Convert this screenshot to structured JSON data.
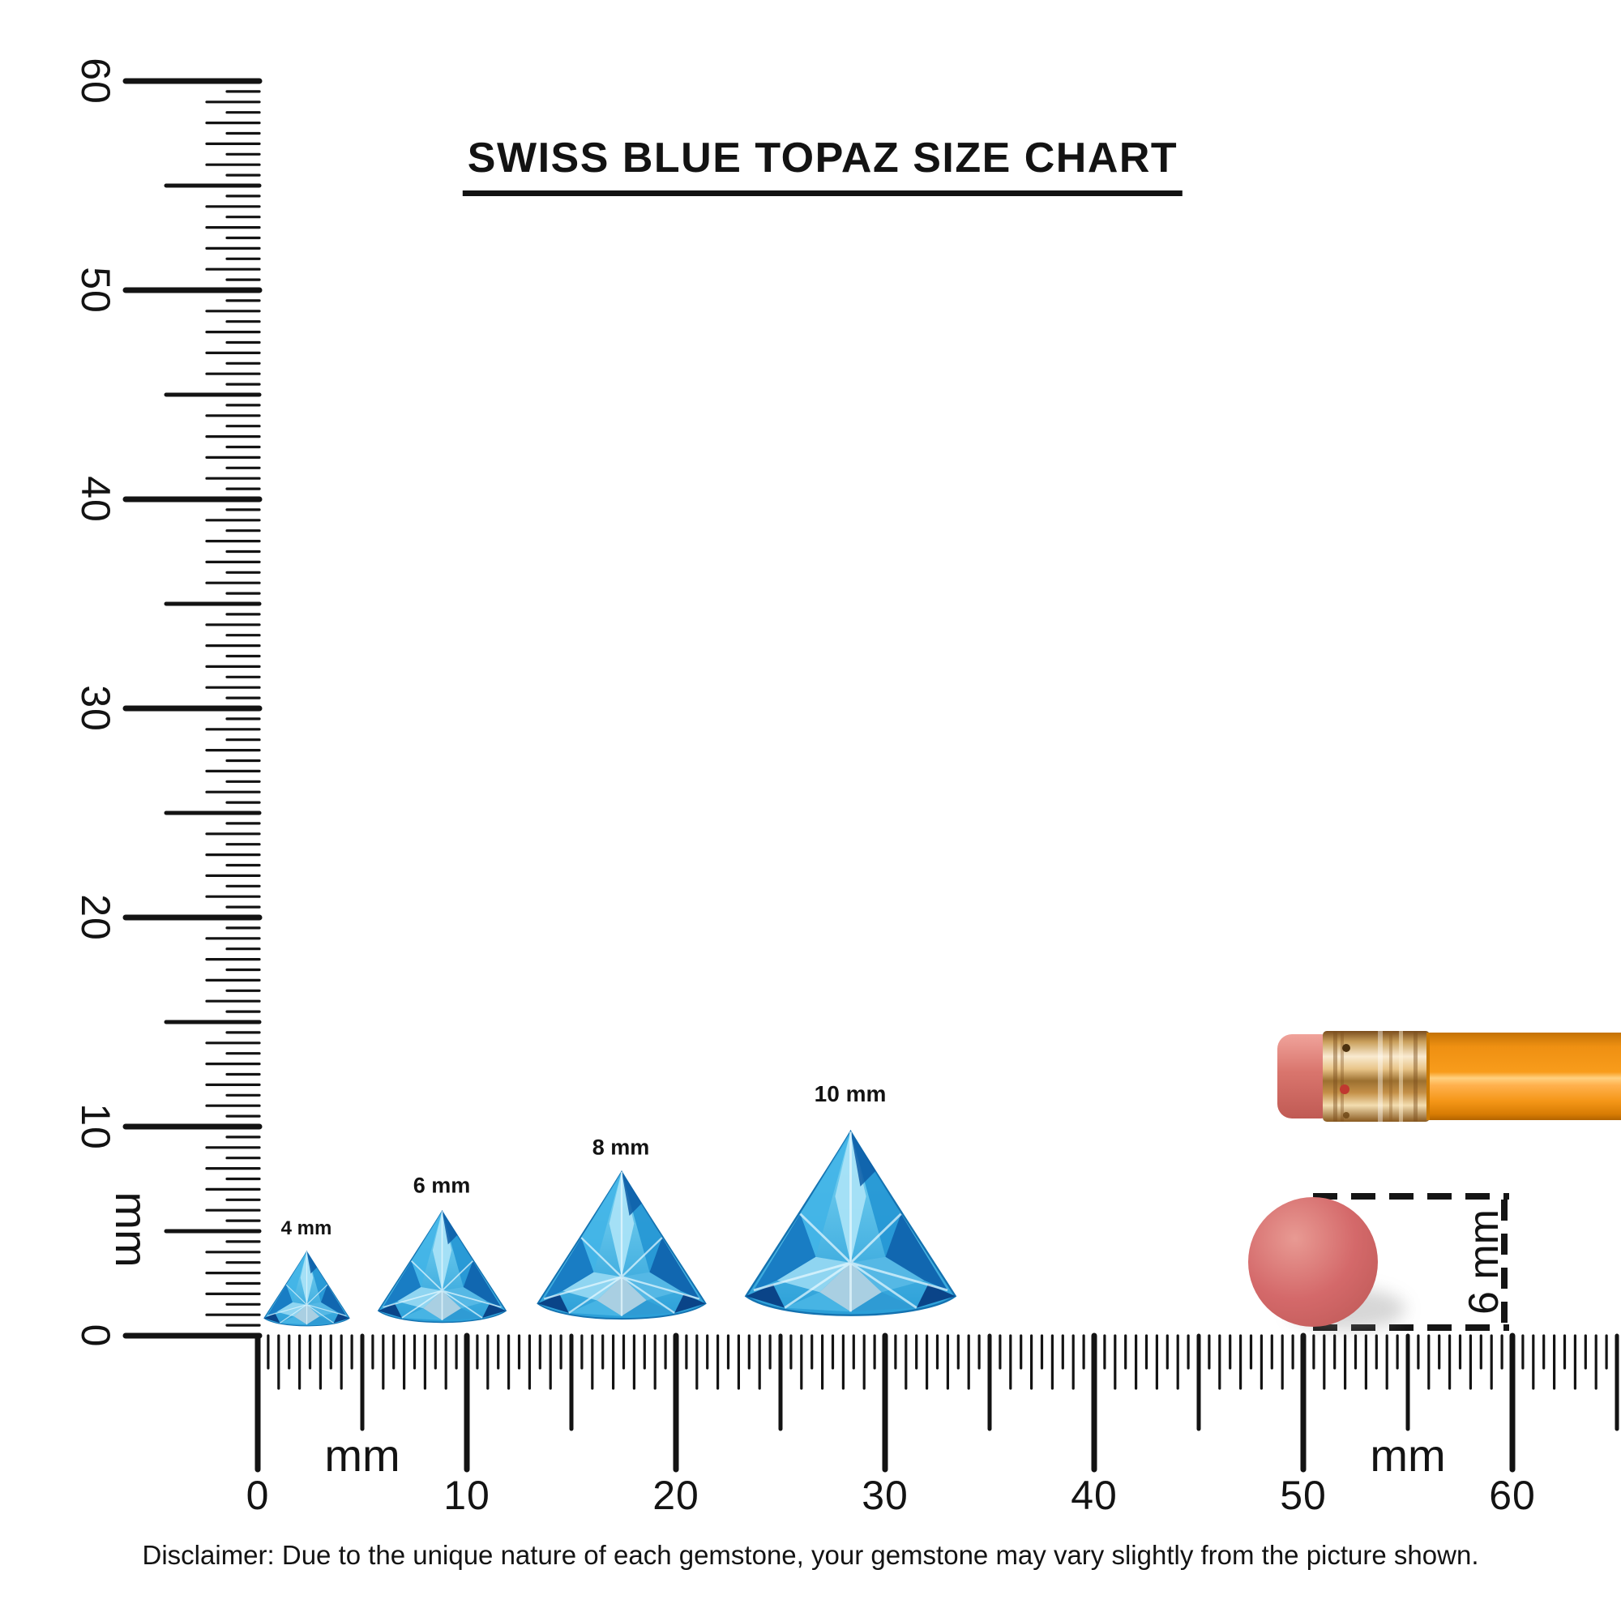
{
  "title": "SWISS BLUE TOPAZ SIZE CHART",
  "disclaimer": "Disclaimer: Due to the unique nature of each gemstone, your gemstone may vary slightly from the picture shown.",
  "vertical_ruler": {
    "unit": "mm",
    "tick_labels": [
      "0",
      "10",
      "20",
      "30",
      "40",
      "50",
      "60"
    ]
  },
  "horizontal_ruler": {
    "unit_left": "mm",
    "unit_right": "mm",
    "tick_labels": [
      "0",
      "10",
      "20",
      "30",
      "40",
      "50",
      "60"
    ]
  },
  "gems": [
    {
      "label": "4 mm",
      "size_mm": 4
    },
    {
      "label": "6 mm",
      "size_mm": 6
    },
    {
      "label": "8 mm",
      "size_mm": 8
    },
    {
      "label": "10 mm",
      "size_mm": 10
    }
  ],
  "eraser_measure": {
    "label": "6 mm",
    "diameter_mm": 6
  },
  "colors": {
    "ink": "#131313",
    "topaz_light": "#a8e2f7",
    "topaz_sky": "#41b4e7",
    "topaz_mid": "#2496d4",
    "topaz_deep": "#0f63ad",
    "topaz_navy": "#0a4488",
    "pencil_orange": "#f89c1b",
    "ferrule_gold": "#e8c488",
    "eraser_pink": "#d9756d",
    "eraser_dot": "#d4696a"
  },
  "chart_data": {
    "type": "table",
    "title": "SWISS BLUE TOPAZ SIZE CHART",
    "categories": [
      "4 mm",
      "6 mm",
      "8 mm",
      "10 mm"
    ],
    "values": [
      4,
      6,
      8,
      10
    ],
    "reference_object_mm": 6,
    "ruler_range_mm": [
      0,
      60
    ],
    "unit": "mm"
  }
}
